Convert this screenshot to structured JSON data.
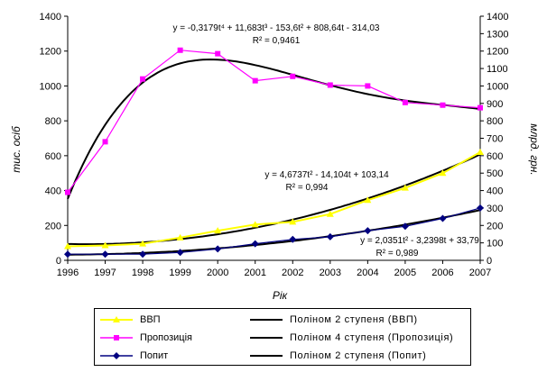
{
  "chart_data": {
    "type": "line",
    "x": [
      "1996",
      "1997",
      "1998",
      "1999",
      "2000",
      "2001",
      "2002",
      "2003",
      "2004",
      "2005",
      "2006",
      "2007"
    ],
    "xlabel": "Рік",
    "ylabel_left": "тис. осіб",
    "ylabel_right": "млрд. грн.",
    "ylim_left": [
      0,
      1400
    ],
    "ylim_right": [
      0,
      1400
    ],
    "yticks_left": [
      "0",
      "200",
      "400",
      "600",
      "800",
      "1000",
      "1200",
      "1400"
    ],
    "yticks_right": [
      "0",
      "100",
      "200",
      "300",
      "400",
      "500",
      "600",
      "700",
      "800",
      "900",
      "1000",
      "1100",
      "1200",
      "1300",
      "1400"
    ],
    "series": [
      {
        "name": "ВВП",
        "color": "#ffff00",
        "marker": "triangle",
        "values": [
          80,
          85,
          95,
          130,
          170,
          205,
          220,
          265,
          345,
          415,
          500,
          620
        ]
      },
      {
        "name": "Пропозиція",
        "color": "#ff00ff",
        "marker": "square",
        "values": [
          390,
          680,
          1040,
          1205,
          1185,
          1030,
          1055,
          1005,
          1000,
          905,
          890,
          875
        ]
      },
      {
        "name": "Попит",
        "color": "#000080",
        "marker": "diamond",
        "values": [
          35,
          35,
          35,
          45,
          65,
          95,
          120,
          135,
          170,
          195,
          240,
          300
        ]
      }
    ],
    "trendlines": [
      {
        "name": "Поліном 2 ступеня (ВВП)",
        "color": "#000000",
        "equation": "y = 4,6737t² - 14,104t + 103,14",
        "r2": "R² = 0,994",
        "coeffs": [
          103.14,
          -14.104,
          4.6737
        ]
      },
      {
        "name": "Поліном 4 ступеня (Пропозиція)",
        "color": "#000000",
        "equation": "y = -0,3179t⁴ + 11,683t³ - 153,6t² + 808,64t - 314,03",
        "r2": "R² = 0,9461",
        "coeffs": [
          -314.03,
          808.64,
          -153.6,
          11.683,
          -0.3179
        ]
      },
      {
        "name": "Поліном 2 ступеня (Попит)",
        "color": "#000000",
        "equation": "y = 2,0351t² - 3,2398t + 33,79",
        "r2": "R² = 0,989",
        "coeffs": [
          33.79,
          -3.2398,
          2.0351
        ]
      }
    ],
    "legend_position": "bottom"
  }
}
